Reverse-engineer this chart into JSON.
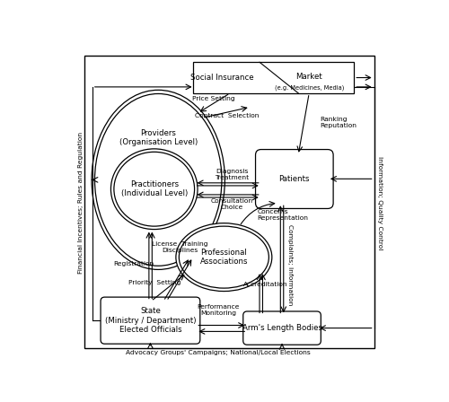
{
  "fig_width": 5.0,
  "fig_height": 4.48,
  "bg_color": "#ffffff",
  "left_label": "Financial Incentives; Rules and Regulation",
  "right_label": "Information; Quality Control",
  "bottom_label": "Advocacy Groups' Campaigns; National/Local Elections"
}
